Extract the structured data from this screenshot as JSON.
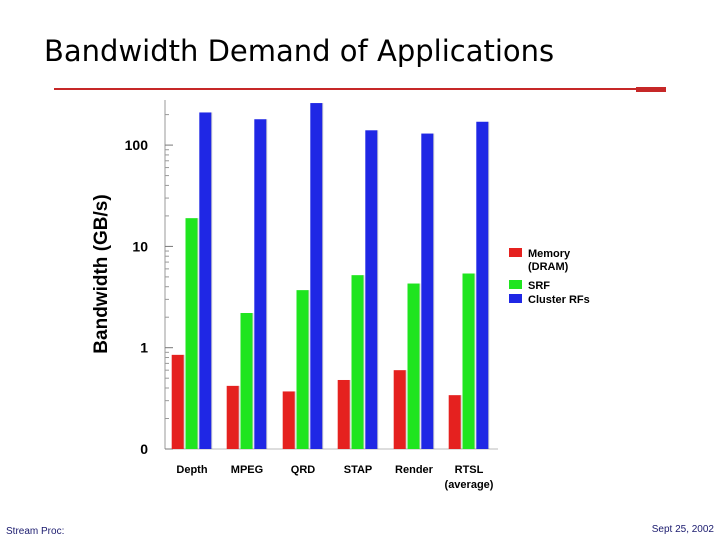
{
  "slide": {
    "title": "Bandwidth Demand of Applications",
    "footer_left": "Stream Proc:",
    "footer_right": "Sept 25, 2002"
  },
  "colors": {
    "accent_rule": "#c62828",
    "memory": "#e5211f",
    "srf": "#1fe51f",
    "cluster": "#1f27e5"
  },
  "chart_data": {
    "type": "bar",
    "scale": "log",
    "ylabel": "Bandwidth (GB/s)",
    "xlabel": "",
    "yticks": [
      {
        "value": 0.1,
        "label": "0"
      },
      {
        "value": 1,
        "label": "1"
      },
      {
        "value": 10,
        "label": "10"
      },
      {
        "value": 100,
        "label": "100"
      }
    ],
    "ylim": [
      0.1,
      300
    ],
    "grid": false,
    "legend_position": "right",
    "categories": [
      "Depth",
      "MPEG",
      "QRD",
      "STAP",
      "Render",
      "RTSL\n(average)"
    ],
    "series": [
      {
        "name": "Memory\n(DRAM)",
        "color": "#e5211f",
        "values": [
          0.85,
          0.42,
          0.37,
          0.48,
          0.6,
          0.34
        ]
      },
      {
        "name": "SRF",
        "color": "#1fe51f",
        "values": [
          19,
          2.2,
          3.7,
          5.2,
          4.3,
          5.4
        ]
      },
      {
        "name": "Cluster RFs",
        "color": "#1f27e5",
        "values": [
          210,
          180,
          260,
          140,
          130,
          170
        ]
      }
    ]
  }
}
